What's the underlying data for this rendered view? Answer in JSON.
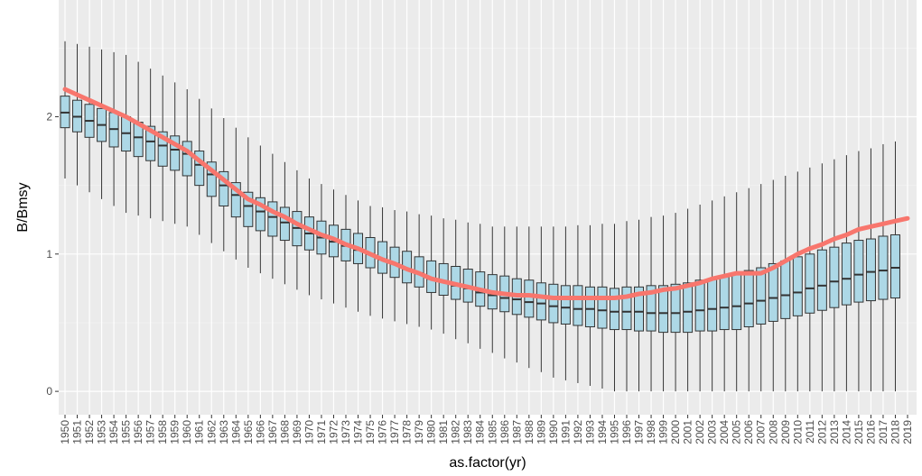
{
  "chart_data": {
    "type": "boxplot",
    "x_label": "as.factor(yr)",
    "y_label": "B/Bmsy",
    "categories": [
      "1950",
      "1951",
      "1952",
      "1953",
      "1954",
      "1955",
      "1956",
      "1957",
      "1958",
      "1959",
      "1960",
      "1961",
      "1962",
      "1963",
      "1964",
      "1965",
      "1966",
      "1967",
      "1968",
      "1969",
      "1970",
      "1971",
      "1972",
      "1973",
      "1974",
      "1975",
      "1976",
      "1977",
      "1978",
      "1979",
      "1980",
      "1981",
      "1982",
      "1983",
      "1984",
      "1985",
      "1986",
      "1987",
      "1988",
      "1989",
      "1990",
      "1991",
      "1992",
      "1993",
      "1994",
      "1995",
      "1996",
      "1997",
      "1998",
      "1999",
      "2000",
      "2001",
      "2002",
      "2003",
      "2004",
      "2005",
      "2006",
      "2007",
      "2008",
      "2009",
      "2010",
      "2011",
      "2012",
      "2013",
      "2014",
      "2015",
      "2016",
      "2017",
      "2018",
      "2019"
    ],
    "boxes": {
      "color": "#add8e6",
      "low": [
        1.55,
        1.5,
        1.45,
        1.4,
        1.35,
        1.3,
        1.28,
        1.26,
        1.24,
        1.22,
        1.2,
        1.14,
        1.08,
        1.02,
        0.96,
        0.9,
        0.86,
        0.82,
        0.78,
        0.74,
        0.7,
        0.67,
        0.64,
        0.61,
        0.58,
        0.55,
        0.53,
        0.51,
        0.49,
        0.47,
        0.45,
        0.42,
        0.38,
        0.35,
        0.31,
        0.28,
        0.24,
        0.21,
        0.17,
        0.14,
        0.1,
        0.08,
        0.06,
        0.04,
        0.02,
        0,
        0,
        0,
        0,
        0,
        0,
        0,
        0,
        0,
        0,
        0,
        0,
        0,
        0,
        0,
        0,
        0,
        0,
        0,
        0,
        0,
        0,
        0,
        0,
        null
      ],
      "q1": [
        1.92,
        1.89,
        1.85,
        1.82,
        1.78,
        1.75,
        1.71,
        1.68,
        1.64,
        1.61,
        1.57,
        1.5,
        1.42,
        1.35,
        1.27,
        1.2,
        1.17,
        1.13,
        1.1,
        1.06,
        1.03,
        1.0,
        0.98,
        0.95,
        0.93,
        0.9,
        0.86,
        0.83,
        0.79,
        0.76,
        0.72,
        0.7,
        0.67,
        0.65,
        0.62,
        0.6,
        0.58,
        0.56,
        0.54,
        0.52,
        0.5,
        0.49,
        0.48,
        0.47,
        0.46,
        0.45,
        0.45,
        0.44,
        0.44,
        0.43,
        0.43,
        0.43,
        0.44,
        0.44,
        0.45,
        0.45,
        0.47,
        0.49,
        0.51,
        0.53,
        0.55,
        0.57,
        0.59,
        0.61,
        0.63,
        0.65,
        0.66,
        0.67,
        0.68,
        null
      ],
      "median": [
        2.03,
        2.0,
        1.97,
        1.94,
        1.91,
        1.88,
        1.85,
        1.82,
        1.79,
        1.76,
        1.73,
        1.65,
        1.58,
        1.5,
        1.43,
        1.35,
        1.31,
        1.27,
        1.23,
        1.19,
        1.15,
        1.12,
        1.09,
        1.06,
        1.03,
        1.0,
        0.96,
        0.93,
        0.89,
        0.86,
        0.82,
        0.8,
        0.77,
        0.75,
        0.72,
        0.7,
        0.68,
        0.67,
        0.65,
        0.64,
        0.62,
        0.61,
        0.6,
        0.6,
        0.59,
        0.58,
        0.58,
        0.58,
        0.57,
        0.57,
        0.57,
        0.58,
        0.59,
        0.6,
        0.61,
        0.62,
        0.64,
        0.66,
        0.68,
        0.7,
        0.72,
        0.75,
        0.77,
        0.8,
        0.82,
        0.85,
        0.87,
        0.88,
        0.9,
        null
      ],
      "q3": [
        2.15,
        2.12,
        2.09,
        2.06,
        2.03,
        2.0,
        1.96,
        1.93,
        1.89,
        1.86,
        1.82,
        1.75,
        1.67,
        1.6,
        1.52,
        1.45,
        1.41,
        1.38,
        1.34,
        1.31,
        1.27,
        1.24,
        1.21,
        1.18,
        1.15,
        1.12,
        1.09,
        1.05,
        1.02,
        0.98,
        0.95,
        0.93,
        0.91,
        0.89,
        0.87,
        0.85,
        0.84,
        0.82,
        0.81,
        0.79,
        0.78,
        0.77,
        0.77,
        0.76,
        0.76,
        0.75,
        0.76,
        0.76,
        0.77,
        0.77,
        0.78,
        0.79,
        0.81,
        0.82,
        0.84,
        0.85,
        0.88,
        0.9,
        0.93,
        0.95,
        0.98,
        1.0,
        1.03,
        1.05,
        1.08,
        1.1,
        1.11,
        1.13,
        1.14,
        null
      ],
      "high": [
        2.55,
        2.53,
        2.51,
        2.49,
        2.47,
        2.45,
        2.4,
        2.35,
        2.3,
        2.25,
        2.2,
        2.13,
        2.06,
        1.99,
        1.92,
        1.85,
        1.79,
        1.73,
        1.67,
        1.61,
        1.55,
        1.51,
        1.47,
        1.43,
        1.39,
        1.35,
        1.34,
        1.32,
        1.31,
        1.29,
        1.28,
        1.26,
        1.25,
        1.23,
        1.22,
        1.2,
        1.2,
        1.2,
        1.2,
        1.2,
        1.2,
        1.2,
        1.21,
        1.21,
        1.22,
        1.22,
        1.24,
        1.25,
        1.27,
        1.28,
        1.3,
        1.33,
        1.36,
        1.39,
        1.42,
        1.45,
        1.48,
        1.51,
        1.54,
        1.57,
        1.6,
        1.63,
        1.66,
        1.69,
        1.72,
        1.75,
        1.77,
        1.8,
        1.82,
        null
      ]
    },
    "line": {
      "color": "#f8766d",
      "values": [
        2.2,
        2.16,
        2.12,
        2.08,
        2.04,
        2.0,
        1.95,
        1.9,
        1.85,
        1.8,
        1.75,
        1.68,
        1.61,
        1.54,
        1.47,
        1.4,
        1.36,
        1.31,
        1.27,
        1.22,
        1.18,
        1.14,
        1.11,
        1.07,
        1.04,
        1.0,
        0.96,
        0.93,
        0.89,
        0.86,
        0.82,
        0.8,
        0.78,
        0.76,
        0.74,
        0.72,
        0.71,
        0.7,
        0.7,
        0.69,
        0.68,
        0.68,
        0.68,
        0.68,
        0.68,
        0.68,
        0.69,
        0.71,
        0.72,
        0.74,
        0.75,
        0.77,
        0.79,
        0.82,
        0.84,
        0.86,
        0.86,
        0.86,
        0.9,
        0.95,
        1.0,
        1.04,
        1.07,
        1.11,
        1.14,
        1.18,
        1.2,
        1.22,
        1.24,
        1.26
      ]
    },
    "ylim": [
      -0.17,
      2.85
    ],
    "yticks": [
      0,
      1,
      2
    ],
    "minor_yticks": [
      0.5,
      1.5,
      2.5
    ],
    "grid": true
  }
}
